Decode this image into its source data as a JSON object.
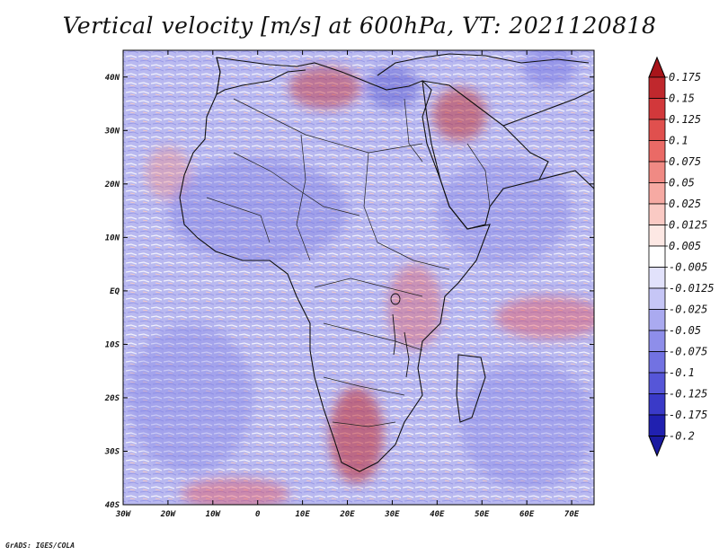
{
  "title": "Vertical velocity [m/s] at 600hPa, VT: 2021120818",
  "credit": "GrADS: IGES/COLA",
  "map": {
    "projection": "lat-lon",
    "lon_range": [
      -30,
      75
    ],
    "lat_range": [
      -40,
      45
    ],
    "lon_ticks": [
      {
        "value": -30,
        "label": "30W"
      },
      {
        "value": -20,
        "label": "20W"
      },
      {
        "value": -10,
        "label": "10W"
      },
      {
        "value": 0,
        "label": "0"
      },
      {
        "value": 10,
        "label": "10E"
      },
      {
        "value": 20,
        "label": "20E"
      },
      {
        "value": 30,
        "label": "30E"
      },
      {
        "value": 40,
        "label": "40E"
      },
      {
        "value": 50,
        "label": "50E"
      },
      {
        "value": 60,
        "label": "60E"
      },
      {
        "value": 70,
        "label": "70E"
      }
    ],
    "lat_ticks": [
      {
        "value": 40,
        "label": "40N"
      },
      {
        "value": 30,
        "label": "30N"
      },
      {
        "value": 20,
        "label": "20N"
      },
      {
        "value": 10,
        "label": "10N"
      },
      {
        "value": 0,
        "label": "EQ"
      },
      {
        "value": -10,
        "label": "10S"
      },
      {
        "value": -20,
        "label": "20S"
      },
      {
        "value": -30,
        "label": "30S"
      },
      {
        "value": -40,
        "label": "40S"
      }
    ],
    "field_blobs": [
      {
        "lon": 22,
        "lat": -27,
        "rx": 6,
        "ry": 9,
        "color": "#c0282d",
        "opacity": 0.55
      },
      {
        "lon": 15,
        "lat": 38,
        "rx": 8,
        "ry": 4,
        "color": "#c0282d",
        "opacity": 0.45
      },
      {
        "lon": 45,
        "lat": 33,
        "rx": 6,
        "ry": 5,
        "color": "#c0282d",
        "opacity": 0.5
      },
      {
        "lon": 65,
        "lat": -5,
        "rx": 12,
        "ry": 4,
        "color": "#e8474a",
        "opacity": 0.4
      },
      {
        "lon": 35,
        "lat": -3,
        "rx": 6,
        "ry": 8,
        "color": "#e8474a",
        "opacity": 0.35
      },
      {
        "lon": -20,
        "lat": 22,
        "rx": 5,
        "ry": 5,
        "color": "#f08a84",
        "opacity": 0.4
      },
      {
        "lon": -5,
        "lat": -38,
        "rx": 12,
        "ry": 3,
        "color": "#e8474a",
        "opacity": 0.4
      },
      {
        "lon": 0,
        "lat": 15,
        "rx": 20,
        "ry": 10,
        "color": "#6f6fe0",
        "opacity": 0.35
      },
      {
        "lon": 55,
        "lat": 15,
        "rx": 15,
        "ry": 10,
        "color": "#6f6fe0",
        "opacity": 0.3
      },
      {
        "lon": 60,
        "lat": -25,
        "rx": 15,
        "ry": 12,
        "color": "#7c7ce6",
        "opacity": 0.35
      },
      {
        "lon": -15,
        "lat": -20,
        "rx": 14,
        "ry": 14,
        "color": "#7c7ce6",
        "opacity": 0.35
      },
      {
        "lon": 30,
        "lat": 38,
        "rx": 6,
        "ry": 4,
        "color": "#3c3cc8",
        "opacity": 0.4
      },
      {
        "lon": 65,
        "lat": 42,
        "rx": 6,
        "ry": 4,
        "color": "#6f6fe0",
        "opacity": 0.45
      }
    ]
  },
  "colorbar": {
    "levels": [
      {
        "label": "0.175",
        "color": "#a8141a"
      },
      {
        "label": "0.15",
        "color": "#c0282d"
      },
      {
        "label": "0.125",
        "color": "#d2383b"
      },
      {
        "label": "0.1",
        "color": "#e0504e"
      },
      {
        "label": "0.075",
        "color": "#ea6a66"
      },
      {
        "label": "0.05",
        "color": "#f08a84"
      },
      {
        "label": "0.025",
        "color": "#f6aaa3"
      },
      {
        "label": "0.0125",
        "color": "#facac4"
      },
      {
        "label": "0.005",
        "color": "#fde8e4"
      },
      {
        "label": "-0.005",
        "color": "#ffffff"
      },
      {
        "label": "-0.0125",
        "color": "#e2e2fb"
      },
      {
        "label": "-0.025",
        "color": "#c6c6f6"
      },
      {
        "label": "-0.05",
        "color": "#aaaaf0"
      },
      {
        "label": "-0.075",
        "color": "#8e8eea"
      },
      {
        "label": "-0.1",
        "color": "#7272e2"
      },
      {
        "label": "-0.125",
        "color": "#5656d8"
      },
      {
        "label": "-0.175",
        "color": "#3a3ac8"
      },
      {
        "label": "-0.2",
        "color": "#2020b0"
      }
    ],
    "top_color": "#a8141a",
    "bottom_color": "#1a1aa0"
  }
}
